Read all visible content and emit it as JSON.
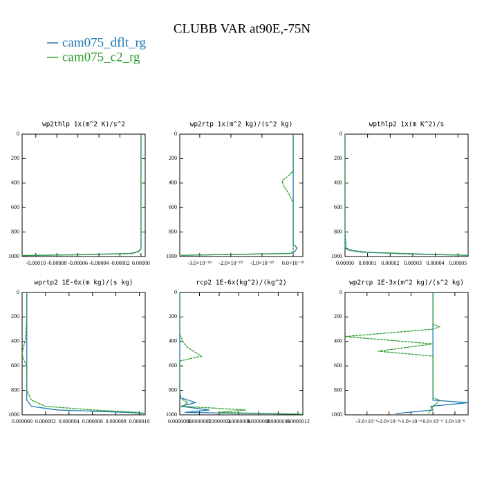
{
  "title": "CLUBB VAR at90E,-75N",
  "chart_data": [
    {
      "type": "line",
      "title": "wp2thlp   1x(m^2 K)/s^2",
      "y": [
        0,
        200,
        400,
        600,
        800,
        940,
        960,
        975,
        985,
        992
      ],
      "series": [
        {
          "name": "cam075_dflt_rg",
          "color": "#1f77b4",
          "values": [
            0,
            0,
            0,
            0,
            0,
            0,
            -3e-06,
            -1e-05,
            -6e-05,
            -0.000113
          ]
        },
        {
          "name": "cam075_c2_rg",
          "color": "#2ca02c",
          "values": [
            0,
            0,
            0,
            0,
            0,
            0,
            -2e-06,
            -8e-06,
            -5e-05,
            -0.000113
          ]
        }
      ],
      "xlim": [
        -0.000113,
        4e-06
      ],
      "xticks": [
        {
          "value": -0.0001,
          "label": "-0.00010"
        },
        {
          "value": -8e-05,
          "label": "-0.00008"
        },
        {
          "value": -6e-05,
          "label": "-0.00006"
        },
        {
          "value": -4e-05,
          "label": "-0.00004"
        },
        {
          "value": -2e-05,
          "label": "-0.00002"
        },
        {
          "value": 0,
          "label": "0.00000"
        }
      ],
      "ylim": [
        1000,
        0
      ],
      "yticks": [
        0,
        200,
        400,
        600,
        800,
        1000
      ]
    },
    {
      "type": "line",
      "title": "wp2rtp   1x(m^2 kg)/(s^2 kg)",
      "y": [
        0,
        200,
        300,
        340,
        380,
        420,
        480,
        560,
        800,
        900,
        930,
        960,
        975,
        990
      ],
      "series": [
        {
          "name": "cam075_dflt_rg",
          "color": "#1f77b4",
          "values": [
            0,
            0,
            0,
            0,
            0,
            0,
            0,
            0,
            0,
            0,
            1.3e-11,
            5e-12,
            -1e-11,
            -3.6e-10
          ]
        },
        {
          "name": "cam075_c2_rg",
          "color": "#2ca02c",
          "values": [
            0,
            0,
            0,
            -1.5e-11,
            -3.5e-11,
            -3.2e-11,
            -1.5e-11,
            0,
            0,
            0,
            0,
            0,
            -1e-11,
            -3.6e-10
          ]
        }
      ],
      "xlim": [
        -3.64e-10,
        3.1e-11
      ],
      "xticks": [
        {
          "value": -3e-10,
          "label": "-3.0×10⁻¹⁰"
        },
        {
          "value": -2e-10,
          "label": "-2.0×10⁻¹⁰"
        },
        {
          "value": -1e-10,
          "label": "-1.0×10⁻¹⁰"
        },
        {
          "value": 0,
          "label": "0.0×10⁻¹⁰"
        }
      ],
      "ylim": [
        1000,
        0
      ],
      "yticks": [
        0,
        200,
        400,
        600,
        800,
        1000
      ]
    },
    {
      "type": "line",
      "title": "wpthlp2   1x(m K^2)/s",
      "y": [
        0,
        200,
        400,
        600,
        800,
        930,
        950,
        965,
        980,
        990
      ],
      "series": [
        {
          "name": "cam075_dflt_rg",
          "color": "#1f77b4",
          "values": [
            0,
            0,
            0,
            0,
            0,
            0,
            2e-06,
            8e-06,
            3e-05,
            5.45e-05
          ]
        },
        {
          "name": "cam075_c2_rg",
          "color": "#2ca02c",
          "values": [
            0,
            0,
            0,
            0,
            0,
            5e-07,
            3e-06,
            1e-05,
            3.5e-05,
            5.45e-05
          ]
        }
      ],
      "xlim": [
        0,
        5.45e-05
      ],
      "xticks": [
        {
          "value": 0,
          "label": "0.00000"
        },
        {
          "value": 1e-05,
          "label": "0.00001"
        },
        {
          "value": 2e-05,
          "label": "0.00002"
        },
        {
          "value": 3e-05,
          "label": "0.00003"
        },
        {
          "value": 4e-05,
          "label": "0.00004"
        },
        {
          "value": 5e-05,
          "label": "0.00005"
        }
      ],
      "ylim": [
        1000,
        0
      ],
      "yticks": [
        0,
        200,
        400,
        600,
        800,
        1000
      ]
    },
    {
      "type": "line",
      "title": "wprtp2   1E-6x(m kg)/(s kg)",
      "y": [
        0,
        200,
        380,
        450,
        500,
        540,
        600,
        800,
        880,
        930,
        960,
        980,
        990
      ],
      "series": [
        {
          "name": "cam075_dflt_rg",
          "color": "#1f77b4",
          "values": [
            4e-07,
            4e-07,
            4e-07,
            4e-07,
            4e-07,
            4e-07,
            4e-07,
            4e-07,
            4e-07,
            8e-07,
            3e-06,
            9e-06,
            1.05e-05
          ]
        },
        {
          "name": "cam075_c2_rg",
          "color": "#2ca02c",
          "values": [
            4e-07,
            4e-07,
            3e-07,
            1e-07,
            0,
            1e-07,
            4e-07,
            4e-07,
            8e-07,
            2e-06,
            6e-06,
            1e-05,
            1.05e-05
          ]
        }
      ],
      "xlim": [
        0,
        1.05e-05
      ],
      "xticks": [
        {
          "value": 0,
          "label": "0.000000"
        },
        {
          "value": 2e-06,
          "label": "0.000002"
        },
        {
          "value": 4e-06,
          "label": "0.000004"
        },
        {
          "value": 6e-06,
          "label": "0.000006"
        },
        {
          "value": 8e-06,
          "label": "0.000008"
        },
        {
          "value": 1e-05,
          "label": "0.000010"
        }
      ],
      "ylim": [
        1000,
        0
      ],
      "yticks": [
        0,
        200,
        400,
        600,
        800,
        1000
      ]
    },
    {
      "type": "line",
      "title": "rcp2   1E-6x(kg^2)/(kg^2)",
      "y": [
        0,
        200,
        340,
        400,
        450,
        520,
        560,
        800,
        860,
        900,
        930,
        960,
        980,
        995
      ],
      "series": [
        {
          "name": "cam075_dflt_rg",
          "color": "#1f77b4",
          "values": [
            0,
            0,
            0,
            0,
            0,
            0,
            0,
            0,
            1e-08,
            1.6e-07,
            1e-08,
            3e-07,
            5e-08,
            1.25e-06
          ]
        },
        {
          "name": "cam075_c2_rg",
          "color": "#2ca02c",
          "values": [
            0,
            0,
            0,
            3e-08,
            8e-08,
            2.2e-07,
            0,
            0,
            0,
            8e-08,
            3e-08,
            6.7e-07,
            4e-07,
            1.25e-06
          ]
        }
      ],
      "xlim": [
        0,
        1.25e-06
      ],
      "xticks": [
        {
          "value": 0,
          "label": "0.0000000"
        },
        {
          "value": 2e-07,
          "label": "0.0000002"
        },
        {
          "value": 4e-07,
          "label": "0.0000004"
        },
        {
          "value": 6e-07,
          "label": "0.0000006"
        },
        {
          "value": 8e-07,
          "label": "0.0000008"
        },
        {
          "value": 1e-06,
          "label": "0.0000010"
        },
        {
          "value": 1.2e-06,
          "label": "0.0000012"
        }
      ],
      "ylim": [
        1000,
        0
      ],
      "yticks": [
        0,
        200,
        400,
        600,
        800,
        1000
      ]
    },
    {
      "type": "line",
      "title": "wp2rcp   1E-3x(m^2 kg)/(s^2 kg)",
      "y": [
        0,
        260,
        280,
        300,
        360,
        420,
        480,
        520,
        860,
        880,
        900,
        930,
        960,
        990
      ],
      "series": [
        {
          "name": "cam075_dflt_rg",
          "color": "#1f77b4",
          "values": [
            0,
            0,
            0,
            0,
            0,
            0,
            0,
            0,
            0,
            0,
            1.6e-06,
            -1e-07,
            0,
            -1.7e-06
          ]
        },
        {
          "name": "cam075_c2_rg",
          "color": "#2ca02c",
          "values": [
            0,
            0,
            3e-07,
            0,
            -4e-06,
            0,
            -2.5e-06,
            0,
            0,
            3e-07,
            2e-07,
            0,
            -1e-07,
            -2e-07
          ]
        }
      ],
      "xlim": [
        -4e-06,
        1.6e-06
      ],
      "xticks": [
        {
          "value": -3e-06,
          "label": "-3.0×10⁻⁶"
        },
        {
          "value": -2e-06,
          "label": "-2.0×10⁻⁶"
        },
        {
          "value": -1e-06,
          "label": "-1.0×10⁻⁶"
        },
        {
          "value": 0,
          "label": "0.0×10⁻⁶"
        },
        {
          "value": 1e-06,
          "label": "1.0×10⁻⁶"
        }
      ],
      "ylim": [
        1000,
        0
      ],
      "yticks": [
        0,
        200,
        400,
        600,
        800,
        1000
      ]
    }
  ]
}
